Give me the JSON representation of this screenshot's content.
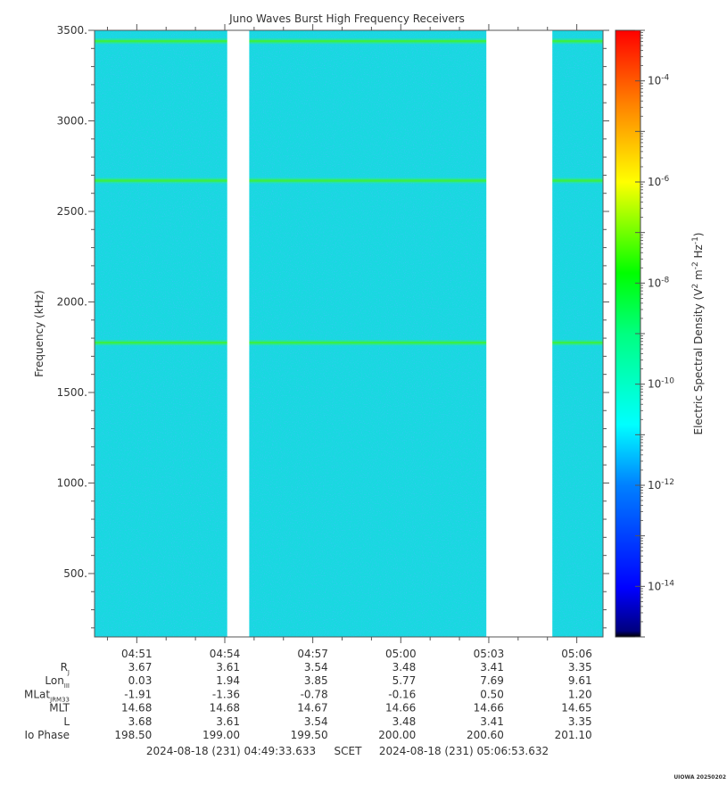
{
  "chart_data": {
    "type": "heatmap",
    "title": "Juno Waves Burst High Frequency Receivers",
    "ylabel": "Frequency (kHz)",
    "colorbar_label_main": "Electric Spectral Density (V",
    "colorbar_label_sup1": "2",
    "colorbar_label_mid": " m",
    "colorbar_label_sup2": "-2",
    "colorbar_label_hz": " Hz",
    "colorbar_label_sup3": "-1",
    "colorbar_label_end": ")",
    "ylim": [
      150,
      3500
    ],
    "y_ticks": [
      {
        "value": 500,
        "label": "500."
      },
      {
        "value": 1000,
        "label": "1000."
      },
      {
        "value": 1500,
        "label": "1500."
      },
      {
        "value": 2000,
        "label": "2000."
      },
      {
        "value": 2500,
        "label": "2500."
      },
      {
        "value": 3000,
        "label": "3000."
      },
      {
        "value": 3500,
        "label": "3500."
      }
    ],
    "x_range": [
      "04:49:33.633",
      "05:06:53.632"
    ],
    "x_ticks": [
      "04:51",
      "04:54",
      "04:57",
      "05:00",
      "05:03",
      "05:06"
    ],
    "colorbar_range_exp": [
      -15,
      -3
    ],
    "colorbar_ticks": [
      {
        "exp": -14,
        "base": "10",
        "sup": "-14"
      },
      {
        "exp": -12,
        "base": "10",
        "sup": "-12"
      },
      {
        "exp": -10,
        "base": "10",
        "sup": "-10"
      },
      {
        "exp": -8,
        "base": "10",
        "sup": "-8"
      },
      {
        "exp": -6,
        "base": "10",
        "sup": "-6"
      },
      {
        "exp": -4,
        "base": "10",
        "sup": "-4"
      }
    ],
    "background_level_exp": -11.5,
    "data_gaps": [
      [
        "04:54:05",
        "04:54:50"
      ],
      [
        "05:02:55",
        "05:05:10"
      ]
    ],
    "emission_lines_khz": [
      1775,
      2670,
      3440
    ],
    "ephemeris_rows": [
      {
        "label": "R",
        "sub": "J",
        "values": [
          "3.67",
          "3.61",
          "3.54",
          "3.48",
          "3.41",
          "3.35"
        ]
      },
      {
        "label": "Lon",
        "sub": "III",
        "values": [
          "0.03",
          "1.94",
          "3.85",
          "5.77",
          "7.69",
          "9.61"
        ]
      },
      {
        "label": "MLat",
        "sub": "JRM33",
        "values": [
          "-1.91",
          "-1.36",
          "-0.78",
          "-0.16",
          "0.50",
          "1.20"
        ]
      },
      {
        "label": "MLT",
        "sub": "",
        "values": [
          "14.68",
          "14.68",
          "14.67",
          "14.66",
          "14.66",
          "14.65"
        ]
      },
      {
        "label": "L",
        "sub": "",
        "values": [
          "3.68",
          "3.61",
          "3.54",
          "3.48",
          "3.41",
          "3.35"
        ]
      },
      {
        "label": "Io Phase",
        "sub": "",
        "values": [
          "198.50",
          "199.00",
          "199.50",
          "200.00",
          "200.60",
          "201.10"
        ]
      }
    ],
    "footer_start": "2024-08-18 (231) 04:49:33.633",
    "footer_mid": "SCET",
    "footer_end": "2024-08-18 (231) 05:06:53.632",
    "credit": "UIOWA 20250202"
  },
  "colors": {
    "background_cyan": "#19d8e0",
    "gap": "#ffffff",
    "axis": "#555555"
  }
}
